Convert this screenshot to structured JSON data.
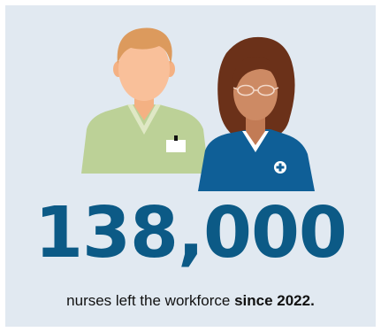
{
  "stat": {
    "value": "138,000",
    "caption_prefix": "nurses left the workforce ",
    "caption_emphasis": "since 2022."
  },
  "colors": {
    "background_panel": "#e1e9f1",
    "number": "#0c5a86",
    "scrubs_green": "#bcd197",
    "scrubs_blue": "#0f5f97"
  },
  "icons": [
    "male-nurse-icon",
    "female-nurse-icon",
    "medical-cross-icon"
  ]
}
